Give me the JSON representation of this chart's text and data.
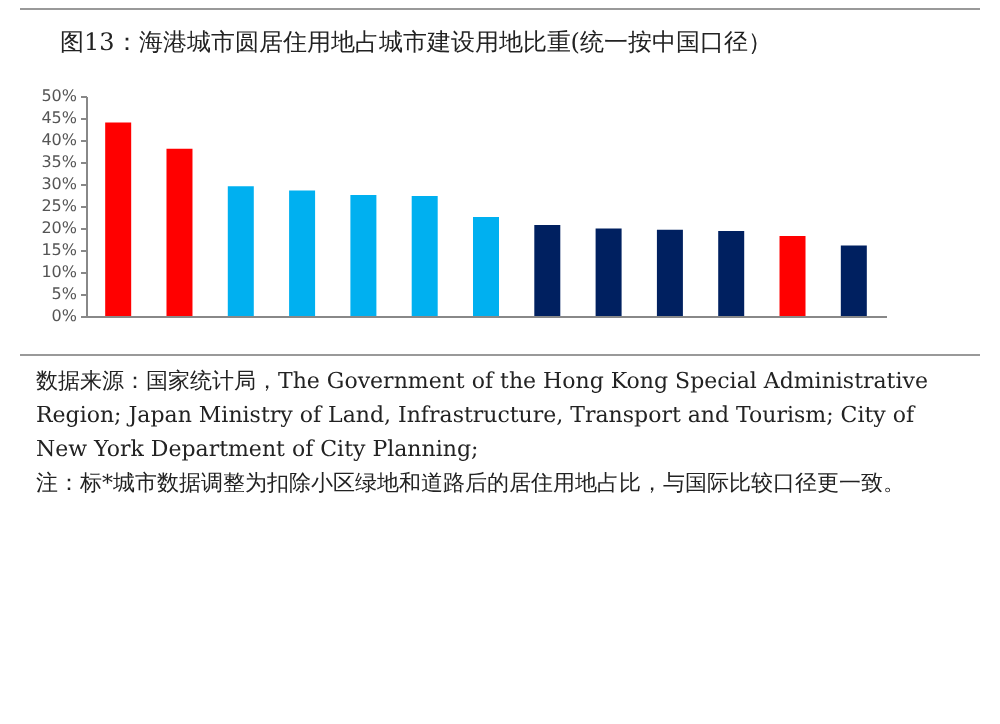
{
  "chart_data": {
    "type": "bar",
    "title": "图13：海港城市圆居住用地占城市建设用地比重(统一按中国口径）",
    "categories": [
      null,
      null,
      null,
      null,
      null,
      null,
      null,
      null,
      null,
      null,
      null,
      null,
      null
    ],
    "values": [
      44,
      38,
      29.5,
      28.5,
      27.5,
      27.3,
      22.5,
      20.7,
      19.9,
      19.6,
      19.3,
      18.2,
      16
    ],
    "colors": [
      "#ff0000",
      "#ff0000",
      "#00b0f0",
      "#00b0f0",
      "#00b0f0",
      "#00b0f0",
      "#00b0f0",
      "#002060",
      "#002060",
      "#002060",
      "#002060",
      "#ff0000",
      "#002060"
    ],
    "ylim": [
      0,
      50
    ],
    "yticks": [
      {
        "value": 0,
        "label": "0%"
      },
      {
        "value": 5,
        "label": "5%"
      },
      {
        "value": 10,
        "label": "10%"
      },
      {
        "value": 15,
        "label": "15%"
      },
      {
        "value": 20,
        "label": "20%"
      },
      {
        "value": 25,
        "label": "25%"
      },
      {
        "value": 30,
        "label": "30%"
      },
      {
        "value": 35,
        "label": "35%"
      },
      {
        "value": 40,
        "label": "40%"
      },
      {
        "value": 45,
        "label": "45%"
      },
      {
        "value": 50,
        "label": "50%"
      }
    ],
    "grid": false,
    "annotations": [
      "数据来源：国家统计局，The Government of the Hong Kong Special Administrative Region; Japan Ministry of Land, Infrastructure, Transport and Tourism;  City of New York Department of City Planning;",
      "注：标*城市数据调整为扣除小区绿地和道路后的居住用地占比，与国际比较口径更一致。"
    ]
  }
}
